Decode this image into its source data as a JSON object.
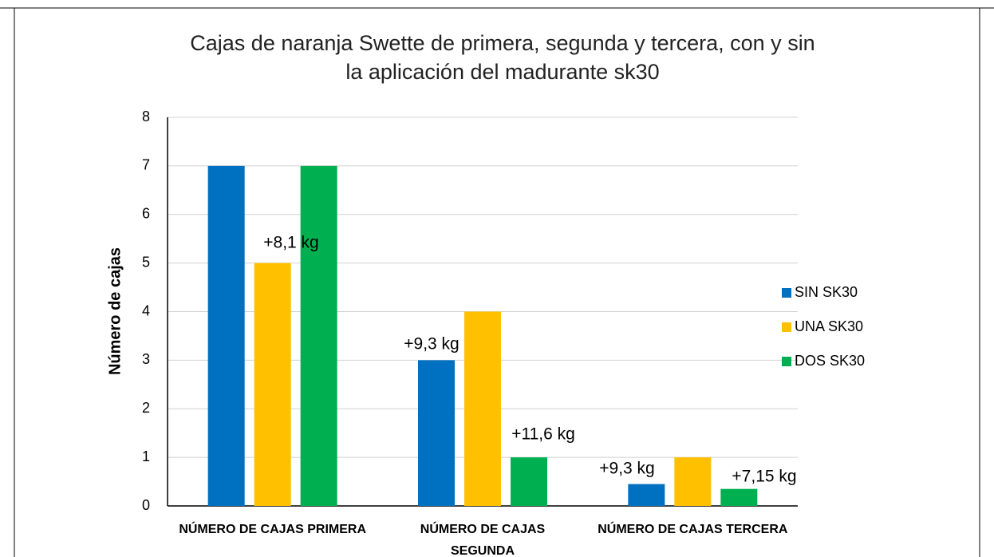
{
  "chart_data": {
    "type": "bar",
    "title": "Cajas de naranja Swette de primera, segunda y tercera, con y sin la aplicación del madurante sk30",
    "y_label": "Número de cajas",
    "categories": [
      "NÚMERO DE CAJAS PRIMERA",
      "NÚMERO DE CAJAS SEGUNDA",
      "NÚMERO DE CAJAS TERCERA"
    ],
    "series": [
      {
        "name": "SIN SK30",
        "color": "#0070c0",
        "values": [
          7,
          3,
          0.45
        ]
      },
      {
        "name": "UNA SK30",
        "color": "#ffc000",
        "values": [
          5,
          4,
          1
        ]
      },
      {
        "name": "DOS SK30",
        "color": "#00b050",
        "values": [
          7,
          1,
          0.35
        ]
      }
    ],
    "annotations": [
      "+8,1 kg",
      "+9,3 kg",
      "+11,6 kg",
      "+9,3 kg",
      "+7,15 kg"
    ],
    "ylim": [
      0,
      8
    ],
    "yticks": [
      0,
      1,
      2,
      3,
      4,
      5,
      6,
      7,
      8
    ],
    "grid": true,
    "legend": "right"
  }
}
